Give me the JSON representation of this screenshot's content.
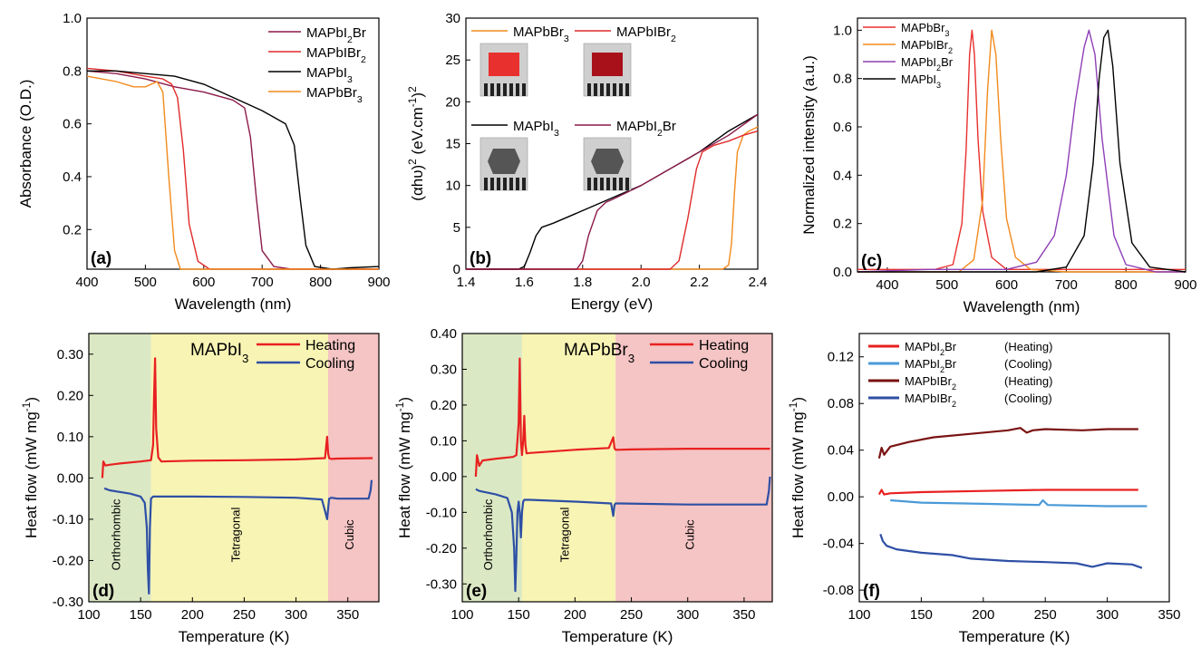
{
  "chart_data": [
    {
      "id": "a",
      "panel_label": "(a)",
      "type": "line",
      "xlabel": "Wavelength (nm)",
      "ylabel": "Absorbance (O.D.)",
      "xlim": [
        400,
        900
      ],
      "ylim": [
        0.05,
        1.0
      ],
      "xticks": [
        400,
        500,
        600,
        700,
        800,
        900
      ],
      "yticks": [
        0.2,
        0.4,
        0.6,
        0.8,
        1.0
      ],
      "legend": "top-right",
      "series": [
        {
          "name": "MAPbI2Br",
          "color": "#8b1a4a",
          "x": [
            400,
            450,
            500,
            550,
            600,
            650,
            670,
            680,
            690,
            700,
            720,
            750,
            800,
            850,
            900
          ],
          "y": [
            0.8,
            0.79,
            0.77,
            0.74,
            0.72,
            0.69,
            0.66,
            0.55,
            0.32,
            0.12,
            0.06,
            0.05,
            0.05,
            0.05,
            0.05
          ]
        },
        {
          "name": "MAPbIBr2",
          "color": "#e02a2a",
          "x": [
            400,
            450,
            500,
            530,
            545,
            555,
            565,
            575,
            590,
            610,
            650,
            700,
            800,
            900
          ],
          "y": [
            0.81,
            0.8,
            0.78,
            0.77,
            0.75,
            0.7,
            0.5,
            0.22,
            0.08,
            0.05,
            0.05,
            0.05,
            0.05,
            0.05
          ]
        },
        {
          "name": "MAPbI3",
          "color": "#000000",
          "x": [
            400,
            450,
            500,
            550,
            600,
            650,
            700,
            740,
            755,
            765,
            775,
            790,
            820,
            850,
            900
          ],
          "y": [
            0.8,
            0.8,
            0.79,
            0.78,
            0.75,
            0.7,
            0.65,
            0.6,
            0.52,
            0.32,
            0.14,
            0.06,
            0.05,
            0.055,
            0.06
          ]
        },
        {
          "name": "MAPbBr3",
          "color": "#f28a1c",
          "x": [
            400,
            450,
            480,
            500,
            520,
            530,
            540,
            550,
            560,
            580,
            600,
            700,
            800,
            900
          ],
          "y": [
            0.78,
            0.76,
            0.74,
            0.74,
            0.76,
            0.72,
            0.4,
            0.12,
            0.05,
            0.05,
            0.05,
            0.05,
            0.05,
            0.05
          ]
        }
      ],
      "legend_entries": [
        {
          "base": "MAPbI",
          "sub": "2",
          "tail": "Br",
          "color": "#8b1a4a"
        },
        {
          "base": "MAPbIBr",
          "sub": "2",
          "tail": "",
          "color": "#e02a2a"
        },
        {
          "base": "MAPbI",
          "sub": "3",
          "tail": "",
          "color": "#000000"
        },
        {
          "base": "MAPbBr",
          "sub": "3",
          "tail": "",
          "color": "#f28a1c"
        }
      ]
    },
    {
      "id": "b",
      "panel_label": "(b)",
      "type": "line",
      "xlabel": "Energy (eV)",
      "ylabel": "(αhυ)2 (eV.cm-1)2",
      "xlim": [
        1.4,
        2.4
      ],
      "ylim": [
        0,
        30
      ],
      "xticks": [
        1.4,
        1.6,
        1.8,
        2.0,
        2.2,
        2.4
      ],
      "yticks": [
        0,
        5,
        10,
        15,
        20,
        25,
        30
      ],
      "series": [
        {
          "name": "MAPbBr3",
          "color": "#f28a1c",
          "x": [
            1.4,
            2.0,
            2.28,
            2.3,
            2.31,
            2.32,
            2.33,
            2.35,
            2.37,
            2.4
          ],
          "y": [
            0,
            0,
            0,
            0.5,
            3,
            9,
            14,
            16,
            16.5,
            17
          ]
        },
        {
          "name": "MAPbIBr2",
          "color": "#e02a2a",
          "x": [
            1.4,
            2.0,
            2.1,
            2.13,
            2.16,
            2.19,
            2.21,
            2.25,
            2.3,
            2.35,
            2.4
          ],
          "y": [
            0,
            0,
            0,
            1,
            6,
            12,
            14,
            14.8,
            15.3,
            16,
            16.5
          ]
        },
        {
          "name": "MAPbI3",
          "color": "#000000",
          "x": [
            1.4,
            1.55,
            1.58,
            1.6,
            1.62,
            1.64,
            1.66,
            1.7,
            1.8,
            1.9,
            2.0,
            2.1,
            2.2,
            2.3,
            2.4
          ],
          "y": [
            0,
            0,
            0,
            0.3,
            2,
            4,
            5,
            5.5,
            7,
            8.5,
            10,
            12,
            14,
            16.5,
            18.5
          ]
        },
        {
          "name": "MAPbI2Br",
          "color": "#8b1a4a",
          "x": [
            1.4,
            1.75,
            1.78,
            1.8,
            1.82,
            1.85,
            1.88,
            1.9,
            2.0,
            2.1,
            2.2,
            2.3,
            2.4
          ],
          "y": [
            0,
            0,
            0,
            1,
            4,
            7,
            8,
            8.3,
            10,
            12,
            14,
            16,
            18.5
          ]
        }
      ],
      "legend_entries": [
        {
          "base": "MAPbBr",
          "sub": "3",
          "tail": "",
          "color": "#f28a1c"
        },
        {
          "base": "MAPbIBr",
          "sub": "2",
          "tail": "",
          "color": "#e02a2a"
        },
        {
          "base": "MAPbI",
          "sub": "3",
          "tail": "",
          "color": "#000000"
        },
        {
          "base": "MAPbI",
          "sub": "2",
          "tail": "Br",
          "color": "#8b1a4a"
        }
      ]
    },
    {
      "id": "c",
      "panel_label": "(c)",
      "type": "line",
      "xlabel": "Wavelength (nm)",
      "ylabel": "Normalized intensity (a.u.)",
      "xlim": [
        350,
        900
      ],
      "ylim": [
        0,
        1.05
      ],
      "xticks": [
        400,
        500,
        600,
        700,
        800,
        900
      ],
      "yticks": [
        0.0,
        0.2,
        0.4,
        0.6,
        0.8,
        1.0
      ],
      "series": [
        {
          "name": "MAPbBr3",
          "color": "#e8302e",
          "x": [
            350,
            480,
            510,
            525,
            532,
            538,
            542,
            546,
            552,
            560,
            575,
            600,
            700,
            900
          ],
          "y": [
            0.01,
            0.01,
            0.03,
            0.2,
            0.5,
            0.9,
            1.0,
            0.9,
            0.55,
            0.25,
            0.06,
            0.01,
            0.01,
            0.01
          ]
        },
        {
          "name": "MAPbIBr2",
          "color": "#f28a1c",
          "x": [
            350,
            520,
            545,
            560,
            568,
            575,
            582,
            590,
            600,
            615,
            640,
            700,
            900
          ],
          "y": [
            0,
            0,
            0.05,
            0.3,
            0.75,
            1.0,
            0.9,
            0.55,
            0.22,
            0.06,
            0.01,
            0,
            0
          ]
        },
        {
          "name": "MAPbI2Br",
          "color": "#8e3fb6",
          "x": [
            350,
            470,
            600,
            650,
            680,
            700,
            715,
            730,
            738,
            748,
            760,
            780,
            800,
            850,
            900
          ],
          "y": [
            0,
            0.01,
            0.01,
            0.04,
            0.15,
            0.4,
            0.7,
            0.93,
            1.0,
            0.9,
            0.55,
            0.15,
            0.03,
            0,
            0
          ]
        },
        {
          "name": "MAPbI3",
          "color": "#000000",
          "x": [
            350,
            650,
            700,
            730,
            745,
            755,
            763,
            770,
            778,
            790,
            810,
            840,
            900
          ],
          "y": [
            0,
            0,
            0.02,
            0.15,
            0.45,
            0.8,
            0.97,
            1.0,
            0.85,
            0.45,
            0.12,
            0.02,
            0
          ]
        }
      ],
      "legend_entries": [
        {
          "base": "MAPbBr",
          "sub": "3",
          "tail": "",
          "color": "#e8302e"
        },
        {
          "base": "MAPbIBr",
          "sub": "2",
          "tail": "",
          "color": "#f28a1c"
        },
        {
          "base": "MAPbI",
          "sub": "2",
          "tail": "Br",
          "color": "#8e3fb6"
        },
        {
          "base": "MAPbI",
          "sub": "3",
          "tail": "",
          "color": "#000000"
        }
      ]
    },
    {
      "id": "d",
      "panel_label": "(d)",
      "type": "line",
      "title": "MAPbI3",
      "xlabel": "Temperature (K)",
      "ylabel": "Heat flow (mW mg-1)",
      "xlim": [
        100,
        380
      ],
      "ylim": [
        -0.3,
        0.35
      ],
      "xticks": [
        100,
        150,
        200,
        250,
        300,
        350
      ],
      "yticks": [
        -0.3,
        -0.2,
        -0.1,
        0.0,
        0.1,
        0.2,
        0.3
      ],
      "phases": [
        {
          "label": "Orthorhombic",
          "from": 100,
          "to": 160,
          "color": "#dbe8c4"
        },
        {
          "label": "Tetragonal",
          "from": 160,
          "to": 331,
          "color": "#f8f4b4"
        },
        {
          "label": "Cubic",
          "from": 331,
          "to": 380,
          "color": "#f5c4c4"
        }
      ],
      "series": [
        {
          "name": "Heating",
          "color": "#e8201f",
          "x": [
            113,
            114,
            116,
            120,
            130,
            150,
            160,
            162,
            163,
            164,
            165,
            167,
            170,
            200,
            250,
            300,
            328,
            330,
            331,
            332,
            334,
            340,
            374
          ],
          "y": [
            0.0,
            0.04,
            0.03,
            0.032,
            0.035,
            0.04,
            0.043,
            0.08,
            0.2,
            0.29,
            0.12,
            0.05,
            0.04,
            0.042,
            0.043,
            0.045,
            0.048,
            0.1,
            0.06,
            0.048,
            0.046,
            0.047,
            0.048
          ]
        },
        {
          "name": "Cooling",
          "color": "#2e4fa5",
          "x": [
            115,
            120,
            140,
            150,
            154,
            156,
            157,
            158,
            159,
            160,
            162,
            170,
            200,
            250,
            300,
            325,
            328,
            330,
            332,
            334,
            340,
            370,
            372,
            373
          ],
          "y": [
            -0.025,
            -0.03,
            -0.038,
            -0.045,
            -0.06,
            -0.12,
            -0.22,
            -0.28,
            -0.12,
            -0.05,
            -0.045,
            -0.045,
            -0.045,
            -0.046,
            -0.048,
            -0.052,
            -0.08,
            -0.1,
            -0.05,
            -0.048,
            -0.05,
            -0.05,
            -0.03,
            -0.005
          ]
        }
      ]
    },
    {
      "id": "e",
      "panel_label": "(e)",
      "type": "line",
      "title": "MAPbBr3",
      "xlabel": "Temperature (K)",
      "ylabel": "Heat flow (mW mg-1)",
      "xlim": [
        100,
        375
      ],
      "ylim": [
        -0.35,
        0.4
      ],
      "xticks": [
        100,
        150,
        200,
        250,
        300,
        350
      ],
      "yticks": [
        -0.3,
        -0.2,
        -0.1,
        0.0,
        0.1,
        0.2,
        0.3,
        0.4
      ],
      "phases": [
        {
          "label": "Orthorhombic",
          "from": 100,
          "to": 153,
          "color": "#dbe8c4"
        },
        {
          "label": "Tetragonal",
          "from": 153,
          "to": 236,
          "color": "#f8f4b4"
        },
        {
          "label": "Cubic",
          "from": 236,
          "to": 375,
          "color": "#f5c4c4"
        }
      ],
      "series": [
        {
          "name": "Heating",
          "color": "#e8201f",
          "x": [
            112,
            113,
            115,
            118,
            130,
            145,
            148,
            150,
            151,
            152,
            153,
            154,
            155,
            156,
            157,
            160,
            200,
            230,
            234,
            235,
            236,
            238,
            250,
            300,
            373
          ],
          "y": [
            0.0,
            0.06,
            0.03,
            0.045,
            0.05,
            0.055,
            0.06,
            0.15,
            0.33,
            0.1,
            0.06,
            0.1,
            0.17,
            0.09,
            0.065,
            0.066,
            0.075,
            0.08,
            0.11,
            0.08,
            0.075,
            0.075,
            0.076,
            0.078,
            0.078
          ]
        },
        {
          "name": "Cooling",
          "color": "#2e4fa5",
          "x": [
            112,
            115,
            130,
            140,
            144,
            146,
            147,
            148,
            149,
            150,
            151,
            152,
            153,
            154,
            155,
            160,
            200,
            232,
            234,
            235,
            236,
            240,
            300,
            370,
            372,
            373
          ],
          "y": [
            -0.035,
            -0.04,
            -0.05,
            -0.06,
            -0.1,
            -0.2,
            -0.32,
            -0.22,
            -0.1,
            -0.07,
            -0.1,
            -0.17,
            -0.1,
            -0.07,
            -0.065,
            -0.065,
            -0.07,
            -0.075,
            -0.11,
            -0.08,
            -0.075,
            -0.075,
            -0.078,
            -0.078,
            -0.04,
            0.0
          ]
        }
      ]
    },
    {
      "id": "f",
      "panel_label": "(f)",
      "type": "line",
      "xlabel": "Temperature (K)",
      "ylabel": "Heat flow (mW mg-1)",
      "xlim": [
        100,
        350
      ],
      "ylim": [
        -0.09,
        0.14
      ],
      "xticks": [
        100,
        150,
        200,
        250,
        300,
        350
      ],
      "yticks": [
        -0.08,
        -0.04,
        0.0,
        0.04,
        0.08,
        0.12
      ],
      "series": [
        {
          "name": "MAPbI2Br (Heating)",
          "color": "#e8201f",
          "x": [
            116,
            118,
            120,
            125,
            150,
            200,
            250,
            300,
            325
          ],
          "y": [
            0.002,
            0.006,
            0.002,
            0.003,
            0.004,
            0.005,
            0.006,
            0.006,
            0.006
          ]
        },
        {
          "name": "MAPbI2Br (Cooling)",
          "color": "#4a9ad8",
          "x": [
            125,
            150,
            200,
            245,
            248,
            252,
            300,
            332
          ],
          "y": [
            -0.003,
            -0.005,
            -0.006,
            -0.007,
            -0.003,
            -0.007,
            -0.008,
            -0.008
          ]
        },
        {
          "name": "MAPbIBr2 (Heating)",
          "color": "#7a1212",
          "x": [
            116,
            118,
            120,
            125,
            140,
            160,
            190,
            220,
            230,
            235,
            240,
            250,
            280,
            300,
            325
          ],
          "y": [
            0.033,
            0.042,
            0.036,
            0.043,
            0.047,
            0.051,
            0.054,
            0.057,
            0.059,
            0.055,
            0.057,
            0.058,
            0.057,
            0.058,
            0.058
          ]
        },
        {
          "name": "MAPbIBr2 (Cooling)",
          "color": "#2e4fa5",
          "x": [
            117,
            119,
            122,
            130,
            150,
            175,
            190,
            220,
            250,
            275,
            288,
            300,
            320,
            328
          ],
          "y": [
            -0.032,
            -0.038,
            -0.042,
            -0.045,
            -0.048,
            -0.05,
            -0.053,
            -0.055,
            -0.056,
            -0.057,
            -0.06,
            -0.057,
            -0.058,
            -0.061
          ]
        }
      ],
      "legend_entries": [
        {
          "base": "MAPbI",
          "sub": "2",
          "tail": "Br",
          "note": "(Heating)",
          "color": "#e8201f"
        },
        {
          "base": "MAPbI",
          "sub": "2",
          "tail": "Br",
          "note": "(Cooling)",
          "color": "#4a9ad8"
        },
        {
          "base": "MAPbIBr",
          "sub": "2",
          "tail": "",
          "note": "(Heating)",
          "color": "#7a1212"
        },
        {
          "base": "MAPbIBr",
          "sub": "2",
          "tail": "",
          "note": "(Cooling)",
          "color": "#2e4fa5"
        }
      ]
    }
  ]
}
